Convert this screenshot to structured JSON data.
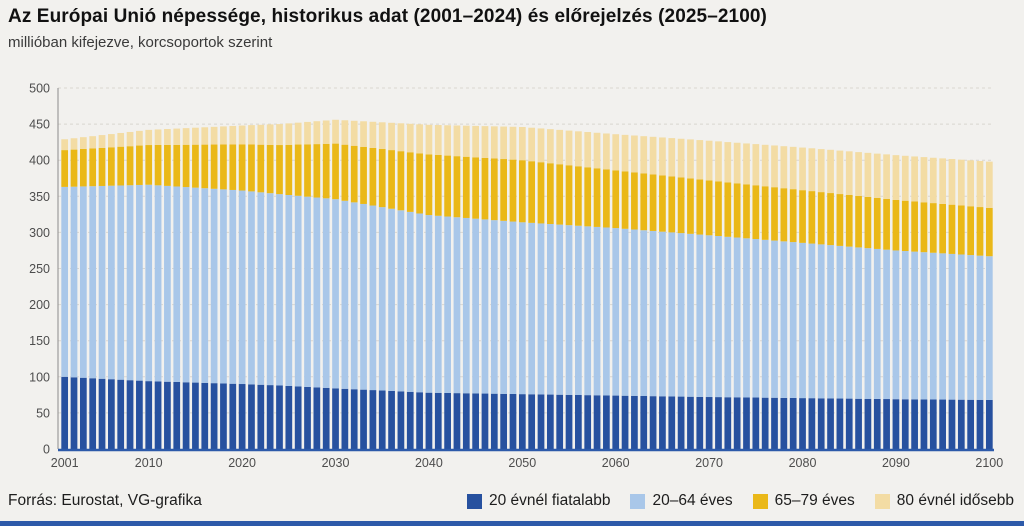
{
  "header": {
    "title": "Az Európai Unió népessége, historikus adat (2001–2024) és előrejelzés (2025–2100)",
    "subtitle": "millióban kifejezve, korcsoportok szerint"
  },
  "footer": {
    "source": "Forrás: Eurostat, VG-grafika"
  },
  "colors": {
    "background": "#f2f1ee",
    "grid": "#d9d6d0",
    "y_axis_line": "#8c8c8c",
    "baseline": "#2d5aa9",
    "tick_text": "#4d4d4d",
    "bottom_strip": "#2d5aa9"
  },
  "chart_data": {
    "type": "bar",
    "stacked": true,
    "title": "Az Európai Unió népessége, historikus adat (2001–2024) és előrejelzés (2025–2100)",
    "subtitle": "millióban kifejezve, korcsoportok szerint",
    "unit": "millió",
    "ylim": [
      0,
      500
    ],
    "yticks": [
      0,
      50,
      100,
      150,
      200,
      250,
      300,
      350,
      400,
      450,
      500
    ],
    "xticks": [
      2001,
      2010,
      2020,
      2030,
      2040,
      2050,
      2060,
      2070,
      2080,
      2090,
      2100
    ],
    "grid": "dashed-horizontal",
    "legend_position": "bottom-right",
    "years": [
      2001,
      2002,
      2003,
      2004,
      2005,
      2006,
      2007,
      2008,
      2009,
      2010,
      2011,
      2012,
      2013,
      2014,
      2015,
      2016,
      2017,
      2018,
      2019,
      2020,
      2021,
      2022,
      2023,
      2024,
      2025,
      2026,
      2027,
      2028,
      2029,
      2030,
      2031,
      2032,
      2033,
      2034,
      2035,
      2036,
      2037,
      2038,
      2039,
      2040,
      2041,
      2042,
      2043,
      2044,
      2045,
      2046,
      2047,
      2048,
      2049,
      2050,
      2051,
      2052,
      2053,
      2054,
      2055,
      2056,
      2057,
      2058,
      2059,
      2060,
      2061,
      2062,
      2063,
      2064,
      2065,
      2066,
      2067,
      2068,
      2069,
      2070,
      2071,
      2072,
      2073,
      2074,
      2075,
      2076,
      2077,
      2078,
      2079,
      2080,
      2081,
      2082,
      2083,
      2084,
      2085,
      2086,
      2087,
      2088,
      2089,
      2090,
      2091,
      2092,
      2093,
      2094,
      2095,
      2096,
      2097,
      2098,
      2099,
      2100
    ],
    "series": [
      {
        "name": "20 évnél fiatalabb",
        "color": "#27519f",
        "values": [
          100,
          99.3,
          98.7,
          98,
          97.3,
          96.7,
          96,
          95.3,
          94.7,
          94,
          93.6,
          93.2,
          92.8,
          92.4,
          92,
          91.6,
          91.2,
          90.8,
          90.4,
          90,
          89.5,
          89,
          88.5,
          88,
          87.3,
          86.7,
          86,
          85.3,
          84.7,
          84,
          83.4,
          82.8,
          82.2,
          81.6,
          81,
          80.4,
          79.8,
          79.2,
          78.6,
          78,
          77.8,
          77.6,
          77.4,
          77.2,
          77,
          76.8,
          76.6,
          76.4,
          76.2,
          76,
          75.8,
          75.6,
          75.4,
          75.2,
          75,
          74.8,
          74.6,
          74.4,
          74.2,
          74,
          73.8,
          73.6,
          73.4,
          73.2,
          73,
          72.8,
          72.6,
          72.4,
          72.2,
          72,
          71.9,
          71.7,
          71.6,
          71.4,
          71.3,
          71.1,
          71,
          70.8,
          70.7,
          70.5,
          70.4,
          70.2,
          70.1,
          69.9,
          69.8,
          69.6,
          69.5,
          69.3,
          69.2,
          69,
          68.9,
          68.8,
          68.7,
          68.6,
          68.5,
          68.4,
          68.3,
          68.2,
          68.1,
          68
        ]
      },
      {
        "name": "20–64 éves",
        "color": "#a9c7e9",
        "values": [
          263,
          264,
          265,
          266,
          267,
          268,
          269,
          270,
          271,
          272,
          271.6,
          271.2,
          270.8,
          270.4,
          270,
          269.6,
          269.2,
          268.8,
          268.4,
          268,
          267.3,
          266.5,
          265.8,
          265,
          264.5,
          264,
          263.5,
          263,
          262.5,
          262,
          260.4,
          258.8,
          257.2,
          255.6,
          254,
          252.4,
          250.8,
          249.2,
          247.6,
          246,
          245.2,
          244.4,
          243.6,
          242.8,
          242,
          241.2,
          240.4,
          239.6,
          238.8,
          238,
          237.4,
          236.8,
          236.2,
          235.6,
          235,
          234.4,
          233.8,
          233.2,
          232.6,
          232,
          231.2,
          230.4,
          229.6,
          228.8,
          228,
          227.2,
          226.4,
          225.6,
          224.8,
          224,
          223.1,
          222.2,
          221.3,
          220.4,
          219.5,
          218.6,
          217.7,
          216.8,
          215.9,
          215,
          214.1,
          213.2,
          212.3,
          211.4,
          210.5,
          209.6,
          208.7,
          207.8,
          206.9,
          206,
          205.3,
          204.6,
          203.9,
          203.2,
          202.5,
          201.8,
          201.1,
          200.4,
          199.7,
          199
        ]
      },
      {
        "name": "65–79 éves",
        "color": "#eab818",
        "values": [
          51,
          51.4,
          51.9,
          52.3,
          52.8,
          53.2,
          53.7,
          54.1,
          54.6,
          55,
          55.9,
          56.8,
          57.7,
          58.6,
          59.5,
          60.4,
          61.3,
          62.2,
          63.1,
          64,
          65,
          66,
          67,
          68,
          69.5,
          71,
          72.5,
          74,
          75.5,
          77,
          77.7,
          78.4,
          79.1,
          79.8,
          80.5,
          81.2,
          81.9,
          82.6,
          83.3,
          84,
          84.2,
          84.4,
          84.6,
          84.8,
          85,
          85.2,
          85.4,
          85.6,
          85.8,
          86,
          85.4,
          84.8,
          84.2,
          83.6,
          83,
          82.4,
          81.8,
          81.2,
          80.6,
          80,
          79.6,
          79.2,
          78.8,
          78.4,
          78,
          77.6,
          77.2,
          76.8,
          76.4,
          76,
          75.7,
          75.4,
          75.1,
          74.8,
          74.5,
          74.2,
          73.9,
          73.6,
          73.3,
          73,
          72.7,
          72.4,
          72.1,
          71.8,
          71.5,
          71.2,
          70.9,
          70.6,
          70.3,
          70,
          69.7,
          69.4,
          69.1,
          68.8,
          68.5,
          68.2,
          67.9,
          67.6,
          67.3,
          67
        ]
      },
      {
        "name": "80 évnél idősebb",
        "color": "#f3dca4",
        "values": [
          15,
          15.7,
          16.3,
          17,
          17.7,
          18.3,
          19,
          19.7,
          20.3,
          21,
          21.5,
          22,
          22.5,
          23,
          23.5,
          24,
          24.5,
          25,
          25.5,
          26,
          26.8,
          27.5,
          28.3,
          29,
          29.7,
          30.3,
          31,
          31.7,
          32.3,
          33,
          33.8,
          34.6,
          35.4,
          36.2,
          37,
          37.8,
          38.6,
          39.4,
          40.2,
          41,
          41.5,
          42,
          42.5,
          43,
          43.5,
          44,
          44.5,
          45,
          45.5,
          46,
          46.4,
          46.8,
          47.2,
          47.6,
          48,
          48.4,
          48.8,
          49.2,
          49.6,
          50,
          50.5,
          51,
          51.5,
          52,
          52.5,
          53,
          53.5,
          54,
          54.5,
          55,
          55.4,
          55.8,
          56.2,
          56.6,
          57,
          57.4,
          57.8,
          58.2,
          58.6,
          59,
          59.3,
          59.6,
          59.9,
          60.2,
          60.5,
          60.8,
          61.1,
          61.4,
          61.7,
          62,
          62.2,
          62.4,
          62.6,
          62.8,
          63,
          63.2,
          63.4,
          63.6,
          63.8,
          64
        ]
      }
    ]
  }
}
